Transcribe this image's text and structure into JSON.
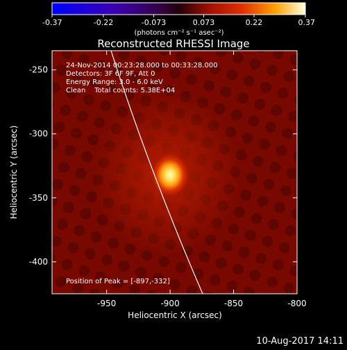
{
  "colorbar": {
    "ticks": [
      "-0.37",
      "-0.22",
      "-0.073",
      "0.073",
      "0.22",
      "0.37"
    ],
    "tick_values": [
      -0.37,
      -0.22,
      -0.073,
      0.073,
      0.22,
      0.37
    ],
    "range": [
      -0.37,
      0.37
    ],
    "unit_label": "(photons cm⁻² s⁻¹ asec⁻²)"
  },
  "image": {
    "title": "Reconstructed RHESSI Image",
    "info_line1": "24-Nov-2014 00:23:28.000 to 00:33:28.000",
    "info_line2": "Detectors: 3F 6F 9F, Att 0",
    "info_line3": "Energy Range: 3.0 - 6.0 keV",
    "info_line4": "Clean    Total counts: 5.38E+04",
    "peak_label": "Position of Peak = [-897,-332]",
    "peak_x": -897,
    "peak_y": -332
  },
  "axes": {
    "xlabel": "Heliocentric X (arcsec)",
    "ylabel": "Heliocentric Y (arcsec)",
    "xlim": [
      -993,
      -800
    ],
    "ylim": [
      -425,
      -235
    ],
    "xticks": [
      "-950",
      "-900",
      "-850",
      "-800"
    ],
    "xtick_values": [
      -950,
      -900,
      -850,
      -800
    ],
    "yticks": [
      "-250",
      "-300",
      "-350",
      "-400"
    ],
    "ytick_values": [
      -250,
      -300,
      -350,
      -400
    ]
  },
  "footer": {
    "timestamp": "10-Aug-2017 14:11"
  },
  "colors": {
    "background": "#000000",
    "limb_line": "#ffffff",
    "hot_core": "#ffffb0"
  }
}
